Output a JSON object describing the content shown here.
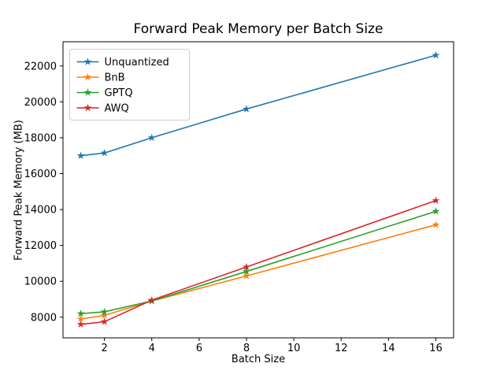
{
  "chart_data": {
    "type": "line",
    "title": "Forward Peak Memory per Batch Size",
    "xlabel": "Batch Size",
    "ylabel": "Forward Peak Memory (MB)",
    "x": [
      1,
      2,
      4,
      8,
      16
    ],
    "series": [
      {
        "name": "Unquantized",
        "color": "#1f77b4",
        "values": [
          17000,
          17150,
          18000,
          19600,
          22600
        ]
      },
      {
        "name": "BnB",
        "color": "#ff7f0e",
        "values": [
          7900,
          8100,
          8900,
          10300,
          13150
        ]
      },
      {
        "name": "GPTQ",
        "color": "#2ca02c",
        "values": [
          8200,
          8300,
          8900,
          10550,
          13900
        ]
      },
      {
        "name": "AWQ",
        "color": "#d62728",
        "values": [
          7600,
          7750,
          8950,
          10800,
          14500
        ]
      }
    ],
    "xlim": [
      0.25,
      16.75
    ],
    "ylim": [
      6850,
      23350
    ],
    "xticks": [
      2,
      4,
      6,
      8,
      10,
      12,
      14,
      16
    ],
    "yticks": [
      8000,
      10000,
      12000,
      14000,
      16000,
      18000,
      20000,
      22000
    ],
    "marker": "star",
    "grid": false,
    "legend_position": "upper-left",
    "axes_color": "#000000",
    "legend_border_color": "#cccccc",
    "background_color": "#ffffff"
  }
}
